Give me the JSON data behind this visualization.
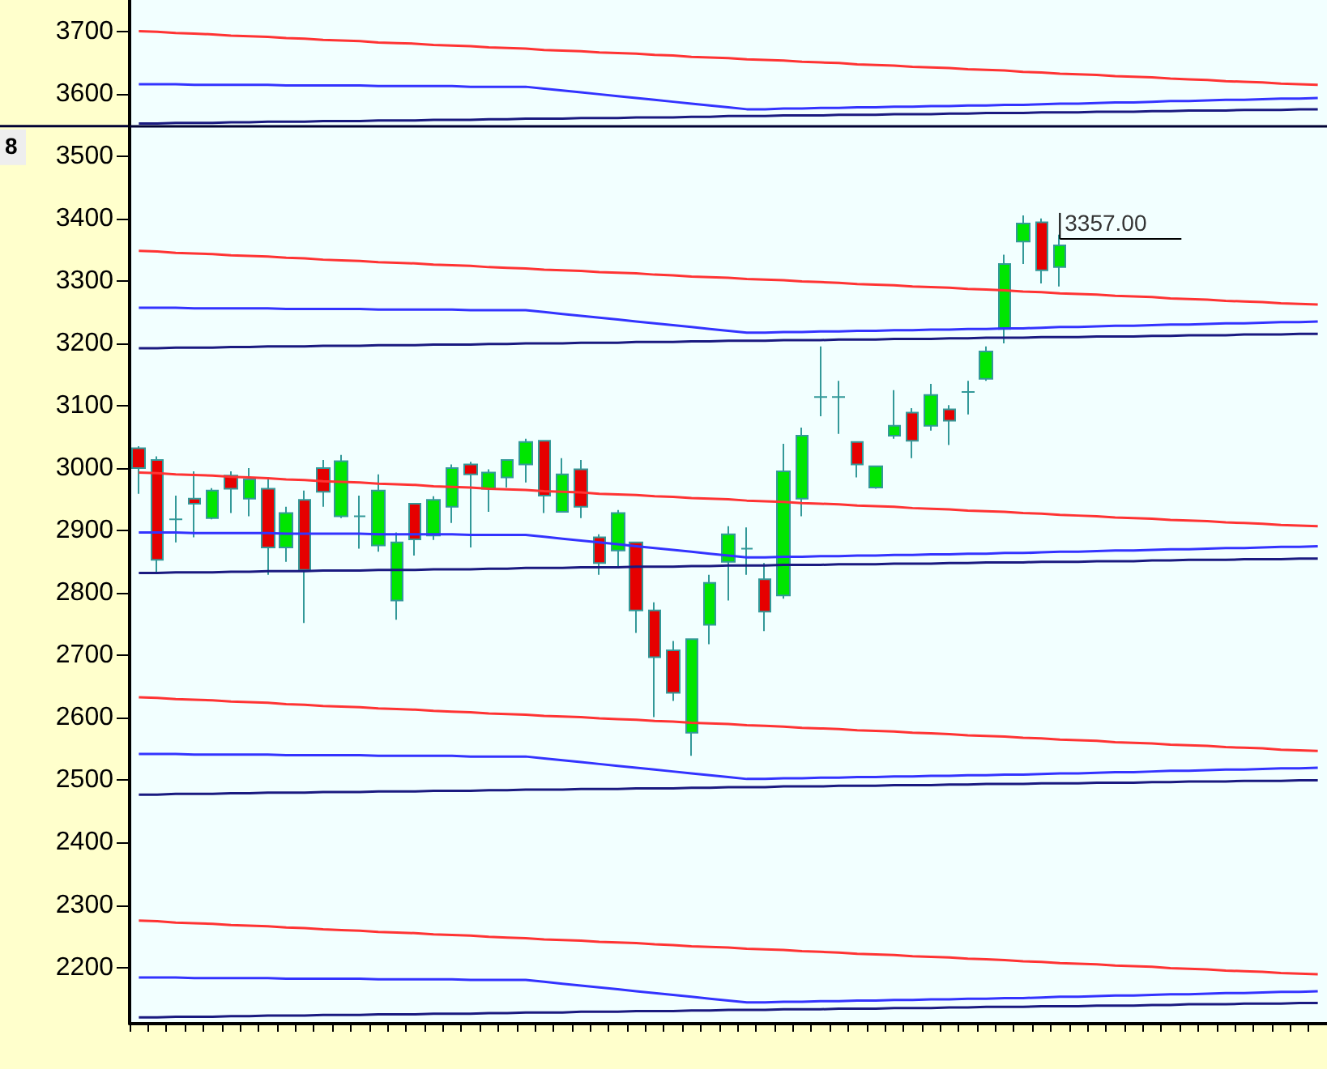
{
  "chart_data": {
    "type": "candlestick",
    "categories": [
      null,
      null,
      null,
      null,
      null,
      null,
      null,
      null,
      null,
      null,
      null,
      null,
      null,
      null,
      null,
      null,
      null,
      null,
      null,
      null,
      null,
      null,
      null,
      null,
      null,
      null,
      null,
      null,
      null,
      null,
      null,
      null,
      null,
      null,
      null,
      null,
      null,
      null,
      null,
      null,
      null,
      null,
      null,
      null,
      null,
      null,
      null,
      null,
      null,
      null,
      null,
      null,
      null,
      null,
      null,
      null,
      null,
      null,
      null,
      null,
      null,
      null,
      null,
      null,
      null
    ],
    "ylim": [
      2110,
      3750
    ],
    "yticks": [
      2200,
      2300,
      2400,
      2500,
      2600,
      2700,
      2800,
      2900,
      3000,
      3100,
      3200,
      3300,
      3400,
      3500,
      3600,
      3700
    ],
    "tick_labels": "y",
    "series": [
      {
        "type": "line",
        "color": "#ff3333",
        "values": [
          3700,
          3699,
          3697,
          3696,
          3695,
          3693,
          3692,
          3691,
          3689,
          3688,
          3686,
          3685,
          3684,
          3682,
          3681,
          3680,
          3678,
          3677,
          3676,
          3674,
          3673,
          3672,
          3670,
          3669,
          3668,
          3666,
          3665,
          3664,
          3662,
          3661,
          3659,
          3658,
          3657,
          3655,
          3654,
          3653,
          3651,
          3650,
          3649,
          3647,
          3646,
          3645,
          3643,
          3642,
          3641,
          3639,
          3638,
          3637,
          3635,
          3634,
          3632,
          3631,
          3630,
          3628,
          3627,
          3626,
          3624,
          3623,
          3622,
          3620,
          3619,
          3618,
          3616,
          3615,
          3614
        ]
      },
      {
        "type": "line",
        "color": "#3333ff",
        "values": [
          3615,
          3615,
          3615,
          3614,
          3614,
          3614,
          3614,
          3614,
          3613,
          3613,
          3613,
          3613,
          3613,
          3612,
          3612,
          3612,
          3612,
          3612,
          3611,
          3611,
          3611,
          3611,
          3608,
          3605,
          3602,
          3599,
          3596,
          3593,
          3590,
          3587,
          3584,
          3581,
          3578,
          3575,
          3575,
          3576,
          3576,
          3577,
          3577,
          3578,
          3578,
          3579,
          3579,
          3580,
          3580,
          3581,
          3581,
          3582,
          3582,
          3583,
          3584,
          3584,
          3585,
          3586,
          3586,
          3587,
          3588,
          3588,
          3589,
          3590,
          3590,
          3591,
          3592,
          3592,
          3593
        ]
      },
      {
        "type": "line",
        "color": "#1a1a80",
        "values": [
          3552,
          3552,
          3553,
          3553,
          3553,
          3554,
          3554,
          3555,
          3555,
          3555,
          3556,
          3556,
          3556,
          3557,
          3557,
          3557,
          3558,
          3558,
          3558,
          3559,
          3559,
          3560,
          3560,
          3560,
          3561,
          3561,
          3561,
          3562,
          3562,
          3562,
          3563,
          3563,
          3564,
          3564,
          3564,
          3565,
          3565,
          3565,
          3566,
          3566,
          3566,
          3567,
          3567,
          3567,
          3568,
          3568,
          3569,
          3569,
          3569,
          3570,
          3570,
          3570,
          3571,
          3571,
          3571,
          3572,
          3572,
          3573,
          3573,
          3573,
          3574,
          3574,
          3574,
          3575,
          3575
        ]
      },
      {
        "type": "line",
        "color": "#ff3333",
        "values": [
          3348,
          3347,
          3345,
          3344,
          3343,
          3341,
          3340,
          3339,
          3337,
          3336,
          3334,
          3333,
          3332,
          3330,
          3329,
          3328,
          3326,
          3325,
          3324,
          3322,
          3321,
          3320,
          3318,
          3317,
          3316,
          3314,
          3313,
          3312,
          3310,
          3309,
          3307,
          3306,
          3305,
          3303,
          3302,
          3301,
          3299,
          3298,
          3297,
          3295,
          3294,
          3293,
          3291,
          3290,
          3289,
          3287,
          3286,
          3285,
          3283,
          3282,
          3280,
          3279,
          3278,
          3276,
          3275,
          3274,
          3272,
          3271,
          3270,
          3268,
          3267,
          3266,
          3264,
          3263,
          3262
        ]
      },
      {
        "type": "line",
        "color": "#3333ff",
        "values": [
          3257,
          3257,
          3257,
          3256,
          3256,
          3256,
          3256,
          3256,
          3255,
          3255,
          3255,
          3255,
          3255,
          3254,
          3254,
          3254,
          3254,
          3254,
          3253,
          3253,
          3253,
          3253,
          3250,
          3247,
          3244,
          3241,
          3238,
          3235,
          3232,
          3229,
          3226,
          3223,
          3220,
          3217,
          3217,
          3218,
          3218,
          3219,
          3219,
          3220,
          3220,
          3221,
          3221,
          3222,
          3222,
          3223,
          3223,
          3224,
          3224,
          3225,
          3226,
          3226,
          3227,
          3228,
          3228,
          3229,
          3230,
          3230,
          3231,
          3232,
          3232,
          3233,
          3234,
          3234,
          3235
        ]
      },
      {
        "type": "line",
        "color": "#1a1a80",
        "values": [
          3192,
          3192,
          3193,
          3193,
          3193,
          3194,
          3194,
          3195,
          3195,
          3195,
          3196,
          3196,
          3196,
          3197,
          3197,
          3197,
          3198,
          3198,
          3198,
          3199,
          3199,
          3200,
          3200,
          3200,
          3201,
          3201,
          3201,
          3202,
          3202,
          3202,
          3203,
          3203,
          3204,
          3204,
          3204,
          3205,
          3205,
          3205,
          3206,
          3206,
          3206,
          3207,
          3207,
          3207,
          3208,
          3208,
          3209,
          3209,
          3209,
          3210,
          3210,
          3210,
          3211,
          3211,
          3211,
          3212,
          3212,
          3213,
          3213,
          3213,
          3214,
          3214,
          3214,
          3215,
          3215
        ]
      },
      {
        "type": "line",
        "color": "#ff3333",
        "values": [
          2993,
          2992,
          2990,
          2989,
          2988,
          2986,
          2985,
          2984,
          2982,
          2981,
          2979,
          2978,
          2977,
          2975,
          2974,
          2973,
          2971,
          2970,
          2969,
          2967,
          2966,
          2965,
          2963,
          2962,
          2961,
          2959,
          2958,
          2957,
          2955,
          2954,
          2952,
          2951,
          2950,
          2948,
          2947,
          2946,
          2944,
          2943,
          2942,
          2940,
          2939,
          2938,
          2936,
          2935,
          2934,
          2932,
          2931,
          2930,
          2928,
          2927,
          2925,
          2924,
          2923,
          2921,
          2920,
          2919,
          2917,
          2916,
          2915,
          2913,
          2912,
          2911,
          2909,
          2908,
          2907
        ]
      },
      {
        "type": "line",
        "color": "#3333ff",
        "values": [
          2897,
          2897,
          2897,
          2896,
          2896,
          2896,
          2896,
          2896,
          2895,
          2895,
          2895,
          2895,
          2895,
          2894,
          2894,
          2894,
          2894,
          2894,
          2893,
          2893,
          2893,
          2893,
          2890,
          2887,
          2884,
          2881,
          2878,
          2875,
          2872,
          2869,
          2866,
          2863,
          2860,
          2857,
          2857,
          2858,
          2858,
          2859,
          2859,
          2860,
          2860,
          2861,
          2861,
          2862,
          2862,
          2863,
          2863,
          2864,
          2864,
          2865,
          2866,
          2866,
          2867,
          2868,
          2868,
          2869,
          2870,
          2870,
          2871,
          2872,
          2872,
          2873,
          2874,
          2874,
          2875
        ]
      },
      {
        "type": "line",
        "color": "#1a1a80",
        "values": [
          2832,
          2832,
          2833,
          2833,
          2833,
          2834,
          2834,
          2835,
          2835,
          2835,
          2836,
          2836,
          2836,
          2837,
          2837,
          2837,
          2838,
          2838,
          2838,
          2839,
          2839,
          2840,
          2840,
          2840,
          2841,
          2841,
          2841,
          2842,
          2842,
          2842,
          2843,
          2843,
          2844,
          2844,
          2844,
          2845,
          2845,
          2845,
          2846,
          2846,
          2846,
          2847,
          2847,
          2847,
          2848,
          2848,
          2849,
          2849,
          2849,
          2850,
          2850,
          2850,
          2851,
          2851,
          2851,
          2852,
          2852,
          2853,
          2853,
          2853,
          2854,
          2854,
          2854,
          2855,
          2855
        ]
      },
      {
        "type": "line",
        "color": "#ff3333",
        "values": [
          2633,
          2632,
          2630,
          2629,
          2628,
          2626,
          2625,
          2624,
          2622,
          2621,
          2619,
          2618,
          2617,
          2615,
          2614,
          2613,
          2611,
          2610,
          2609,
          2607,
          2606,
          2605,
          2603,
          2602,
          2601,
          2599,
          2598,
          2597,
          2595,
          2594,
          2592,
          2591,
          2590,
          2588,
          2587,
          2586,
          2584,
          2583,
          2582,
          2580,
          2579,
          2578,
          2576,
          2575,
          2574,
          2572,
          2571,
          2570,
          2568,
          2567,
          2565,
          2564,
          2563,
          2561,
          2560,
          2559,
          2557,
          2556,
          2555,
          2553,
          2552,
          2551,
          2549,
          2548,
          2547
        ]
      },
      {
        "type": "line",
        "color": "#3333ff",
        "values": [
          2542,
          2542,
          2542,
          2541,
          2541,
          2541,
          2541,
          2541,
          2540,
          2540,
          2540,
          2540,
          2540,
          2539,
          2539,
          2539,
          2539,
          2539,
          2538,
          2538,
          2538,
          2538,
          2535,
          2532,
          2529,
          2526,
          2523,
          2520,
          2517,
          2514,
          2511,
          2508,
          2505,
          2502,
          2502,
          2503,
          2503,
          2504,
          2504,
          2505,
          2505,
          2506,
          2506,
          2507,
          2507,
          2508,
          2508,
          2509,
          2509,
          2510,
          2511,
          2511,
          2512,
          2513,
          2513,
          2514,
          2515,
          2515,
          2516,
          2517,
          2517,
          2518,
          2519,
          2519,
          2520
        ]
      },
      {
        "type": "line",
        "color": "#1a1a80",
        "values": [
          2477,
          2477,
          2478,
          2478,
          2478,
          2479,
          2479,
          2480,
          2480,
          2480,
          2481,
          2481,
          2481,
          2482,
          2482,
          2482,
          2483,
          2483,
          2483,
          2484,
          2484,
          2485,
          2485,
          2485,
          2486,
          2486,
          2486,
          2487,
          2487,
          2487,
          2488,
          2488,
          2489,
          2489,
          2489,
          2490,
          2490,
          2490,
          2491,
          2491,
          2491,
          2492,
          2492,
          2492,
          2493,
          2493,
          2494,
          2494,
          2494,
          2495,
          2495,
          2495,
          2496,
          2496,
          2496,
          2497,
          2497,
          2498,
          2498,
          2498,
          2499,
          2499,
          2499,
          2500,
          2500
        ]
      },
      {
        "type": "line",
        "color": "#ff3333",
        "values": [
          2275,
          2274,
          2272,
          2271,
          2270,
          2268,
          2267,
          2266,
          2264,
          2263,
          2261,
          2260,
          2259,
          2257,
          2256,
          2255,
          2253,
          2252,
          2251,
          2249,
          2248,
          2247,
          2245,
          2244,
          2243,
          2241,
          2240,
          2239,
          2237,
          2236,
          2234,
          2233,
          2232,
          2230,
          2229,
          2228,
          2226,
          2225,
          2224,
          2222,
          2221,
          2220,
          2218,
          2217,
          2216,
          2214,
          2213,
          2212,
          2210,
          2209,
          2207,
          2206,
          2205,
          2203,
          2202,
          2201,
          2199,
          2198,
          2197,
          2195,
          2194,
          2193,
          2191,
          2190,
          2189
        ]
      },
      {
        "type": "line",
        "color": "#3333ff",
        "values": [
          2184,
          2184,
          2184,
          2183,
          2183,
          2183,
          2183,
          2183,
          2182,
          2182,
          2182,
          2182,
          2182,
          2181,
          2181,
          2181,
          2181,
          2181,
          2180,
          2180,
          2180,
          2180,
          2177,
          2174,
          2171,
          2168,
          2165,
          2162,
          2159,
          2156,
          2153,
          2150,
          2147,
          2144,
          2144,
          2145,
          2145,
          2146,
          2146,
          2147,
          2147,
          2148,
          2148,
          2149,
          2149,
          2150,
          2150,
          2151,
          2151,
          2152,
          2153,
          2153,
          2154,
          2155,
          2155,
          2156,
          2157,
          2157,
          2158,
          2159,
          2159,
          2160,
          2161,
          2161,
          2162
        ]
      },
      {
        "type": "line",
        "color": "#1a1a80",
        "values": [
          2120,
          2120,
          2121,
          2121,
          2121,
          2122,
          2122,
          2123,
          2123,
          2123,
          2124,
          2124,
          2124,
          2125,
          2125,
          2125,
          2126,
          2126,
          2126,
          2127,
          2127,
          2128,
          2128,
          2128,
          2129,
          2129,
          2129,
          2130,
          2130,
          2130,
          2131,
          2131,
          2132,
          2132,
          2132,
          2133,
          2133,
          2133,
          2134,
          2134,
          2134,
          2135,
          2135,
          2135,
          2136,
          2136,
          2137,
          2137,
          2137,
          2138,
          2138,
          2138,
          2139,
          2139,
          2139,
          2140,
          2140,
          2141,
          2141,
          2141,
          2142,
          2142,
          2142,
          2143,
          2143
        ]
      },
      {
        "type": "candlestick",
        "ohlc": [
          [
            3032,
            3035,
            2959,
            3000
          ],
          [
            3013,
            3019,
            2832,
            2853
          ],
          [
            2918,
            2956,
            2881,
            2918
          ],
          [
            2951,
            2995,
            2889,
            2943
          ],
          [
            2920,
            2968,
            2918,
            2964
          ],
          [
            2988,
            2995,
            2928,
            2967
          ],
          [
            2951,
            3000,
            2923,
            2982
          ],
          [
            2967,
            2985,
            2829,
            2873
          ],
          [
            2873,
            2938,
            2850,
            2928
          ],
          [
            2949,
            2964,
            2752,
            2837
          ],
          [
            3000,
            3013,
            2938,
            2962
          ],
          [
            2923,
            3021,
            2920,
            3011
          ],
          [
            2923,
            2956,
            2871,
            2923
          ],
          [
            2876,
            2990,
            2866,
            2964
          ],
          [
            2788,
            2897,
            2757,
            2881
          ],
          [
            2943,
            2943,
            2860,
            2886
          ],
          [
            2892,
            2955,
            2885,
            2949
          ],
          [
            2938,
            3006,
            2912,
            3000
          ],
          [
            3006,
            3010,
            2873,
            2990
          ],
          [
            2967,
            2998,
            2930,
            2993
          ],
          [
            2985,
            3013,
            2969,
            3013
          ],
          [
            3006,
            3047,
            2977,
            3042
          ],
          [
            3044,
            3044,
            2928,
            2956
          ],
          [
            2930,
            3016,
            2930,
            2990
          ],
          [
            2998,
            3013,
            2920,
            2938
          ],
          [
            2889,
            2894,
            2829,
            2848
          ],
          [
            2868,
            2933,
            2840,
            2928
          ],
          [
            2881,
            2881,
            2736,
            2772
          ],
          [
            2772,
            2785,
            2601,
            2697
          ],
          [
            2708,
            2723,
            2627,
            2640
          ],
          [
            2576,
            2726,
            2539,
            2726
          ],
          [
            2749,
            2829,
            2718,
            2816
          ],
          [
            2850,
            2907,
            2788,
            2894
          ],
          [
            2871,
            2905,
            2829,
            2871
          ],
          [
            2822,
            2848,
            2739,
            2770
          ],
          [
            2796,
            3039,
            2791,
            2995
          ],
          [
            2951,
            3065,
            2923,
            3052
          ],
          [
            3114,
            3195,
            3083,
            3114
          ],
          [
            3114,
            3140,
            3055,
            3114
          ],
          [
            3042,
            3042,
            2985,
            3006
          ],
          [
            2969,
            3003,
            2967,
            3003
          ],
          [
            3052,
            3125,
            3047,
            3068
          ],
          [
            3089,
            3096,
            3016,
            3044
          ],
          [
            3068,
            3135,
            3060,
            3117
          ],
          [
            3094,
            3101,
            3037,
            3076
          ],
          [
            3122,
            3140,
            3086,
            3122
          ],
          [
            3143,
            3195,
            3140,
            3187
          ],
          [
            3223,
            3342,
            3200,
            3327
          ],
          [
            3363,
            3405,
            3327,
            3392
          ],
          [
            3394,
            3400,
            3296,
            3317
          ],
          [
            3322,
            3374,
            3291,
            3357
          ],
          null,
          null,
          null,
          null,
          null,
          null,
          null,
          null,
          null,
          null,
          null,
          null,
          null,
          null
        ],
        "colors": [
          "#e60000",
          "#e60000",
          "#339999",
          "#e60000",
          "#00e600",
          "#e60000",
          "#00e600",
          "#e60000",
          "#00e600",
          "#e60000",
          "#e60000",
          "#00e600",
          "#339999",
          "#00e600",
          "#00e600",
          "#e60000",
          "#00e600",
          "#00e600",
          "#e60000",
          "#00e600",
          "#00e600",
          "#00e600",
          "#e60000",
          "#00e600",
          "#e60000",
          "#e60000",
          "#00e600",
          "#e60000",
          "#e60000",
          "#e60000",
          "#00e600",
          "#00e600",
          "#00e600",
          "#339999",
          "#e60000",
          "#00e600",
          "#00e600",
          "#339999",
          "#339999",
          "#e60000",
          "#00e600",
          "#00e600",
          "#e60000",
          "#00e600",
          "#e60000",
          "#339999",
          "#00e600",
          "#00e600",
          "#00e600",
          "#e60000",
          "#00e600",
          null,
          null,
          null,
          null,
          null,
          null,
          null,
          null,
          null,
          null,
          null,
          null,
          null,
          null
        ]
      }
    ],
    "ref_lines": [
      {
        "axis": "y",
        "value": 3548,
        "color": "#000033"
      }
    ],
    "annotations": [
      "8",
      "3357.00"
    ]
  }
}
